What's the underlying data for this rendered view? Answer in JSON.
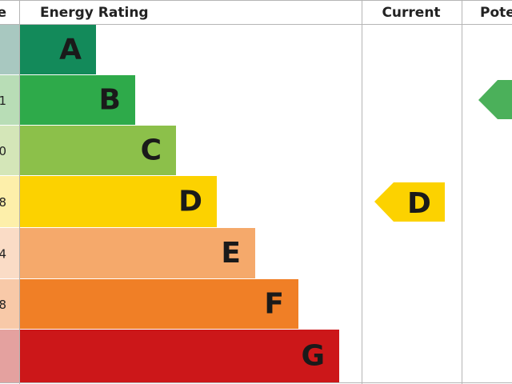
{
  "header": {
    "score": "e",
    "rating": "Energy Rating",
    "current": "Current",
    "potential": "Pote"
  },
  "bands": [
    {
      "letter": "A",
      "score": ""
    },
    {
      "letter": "B",
      "score": "1"
    },
    {
      "letter": "C",
      "score": "0"
    },
    {
      "letter": "D",
      "score": "8"
    },
    {
      "letter": "E",
      "score": "4"
    },
    {
      "letter": "F",
      "score": "8"
    },
    {
      "letter": "G",
      "score": ""
    }
  ],
  "current": {
    "letter": "D"
  }
}
